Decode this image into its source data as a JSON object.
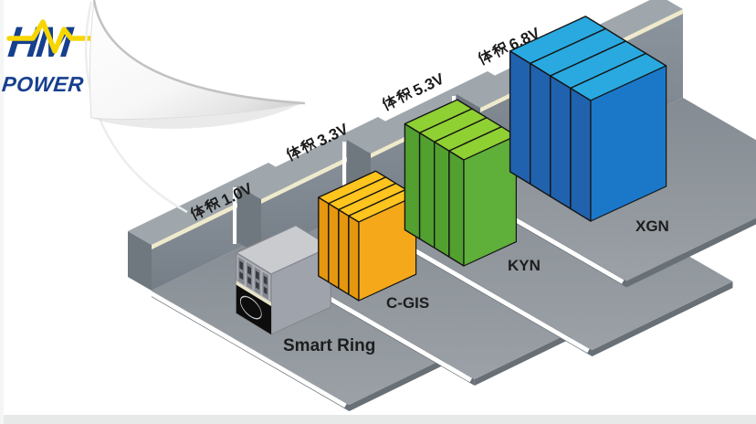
{
  "brand": {
    "name_line1": "HM",
    "name_line2": "POWER",
    "primary_color": "#16408E",
    "accent_color": "#F7D600"
  },
  "diagram": {
    "groups": [
      {
        "product": "Smart Ring",
        "volume_label": "体积1.0V",
        "volume_value": "1.0V",
        "volume_ratio": 1.0,
        "cabinet_count": 1,
        "colors": {
          "top": "#C9CBCF",
          "front": "#9FA3AB",
          "side": "#AEB0B6",
          "panel": "#0D0D0D",
          "trim": "#E9E5C9",
          "meter": "#83878F"
        }
      },
      {
        "product": "C-GIS",
        "volume_label": "体积3.3V",
        "volume_value": "3.3V",
        "volume_ratio": 3.3,
        "cabinet_count": 4,
        "colors": {
          "top": "#FFC41E",
          "front": "#F5A91A",
          "side": "#E5980E"
        }
      },
      {
        "product": "KYN",
        "volume_label": "体积5.3V",
        "volume_value": "5.3V",
        "volume_ratio": 5.3,
        "cabinet_count": 4,
        "colors": {
          "top": "#8FD033",
          "front": "#5FAF3B",
          "side": "#52A02F"
        }
      },
      {
        "product": "XGN",
        "volume_label": "体积6.8V",
        "volume_value": "6.8V",
        "volume_ratio": 6.8,
        "cabinet_count": 4,
        "colors": {
          "top": "#29A9E0",
          "front": "#1B78C9",
          "side": "#2062AE"
        }
      }
    ]
  },
  "scene_colors": {
    "background": "#FFFFFF",
    "floor": "#8A9198",
    "floor_edge": "#687076",
    "wall_face": "#828A93",
    "wall_top": "#9FA7AD",
    "wall_cap": "#6F777F",
    "wall_trim": "#EFEACB",
    "seam": "#151515",
    "border_strip": "#E7E9E9"
  },
  "chart_data": {
    "type": "bar",
    "categories": [
      "Smart Ring",
      "C-GIS",
      "KYN",
      "XGN"
    ],
    "values": [
      1.0,
      3.3,
      5.3,
      6.8
    ],
    "unit": "V",
    "value_labels": [
      "体积1.0V",
      "体积3.3V",
      "体积5.3V",
      "体积6.8V"
    ],
    "title": "",
    "xlabel": "",
    "ylabel": ""
  }
}
